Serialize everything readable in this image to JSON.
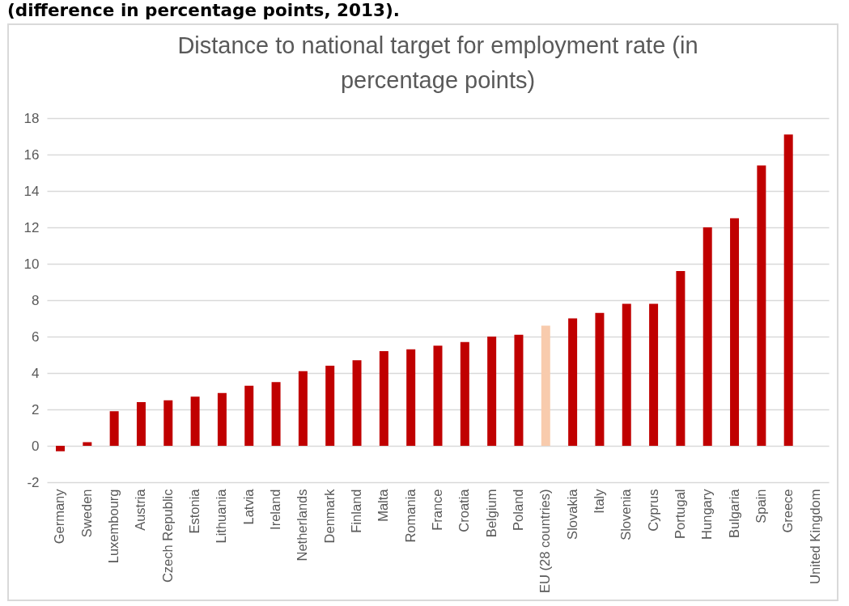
{
  "chart_data": {
    "type": "bar",
    "title": "Distance to national target for employment rate (in percentage points)",
    "annotations": [
      "(difference in percentage points, 2013)."
    ],
    "categories": [
      "Germany",
      "Sweden",
      "Luxembourg",
      "Austria",
      "Czech Republic",
      "Estonia",
      "Lithuania",
      "Latvia",
      "Ireland",
      "Netherlands",
      "Denmark",
      "Finland",
      "Malta",
      "Romania",
      "France",
      "Croatia",
      "Belgium",
      "Poland",
      "EU (28 countries)",
      "Slovakia",
      "Italy",
      "Slovenia",
      "Cyprus",
      "Portugal",
      "Hungary",
      "Bulgaria",
      "Spain",
      "Greece",
      "United Kingdom"
    ],
    "values": [
      -0.3,
      0.2,
      1.9,
      2.4,
      2.5,
      2.7,
      2.9,
      3.3,
      3.5,
      4.1,
      4.4,
      4.7,
      5.2,
      5.3,
      5.5,
      5.7,
      6.0,
      6.1,
      6.6,
      7.0,
      7.3,
      7.8,
      7.8,
      9.6,
      12.0,
      12.5,
      15.4,
      17.1,
      null
    ],
    "colors": [
      "#c00000",
      "#c00000",
      "#c00000",
      "#c00000",
      "#c00000",
      "#c00000",
      "#c00000",
      "#c00000",
      "#c00000",
      "#c00000",
      "#c00000",
      "#c00000",
      "#c00000",
      "#c00000",
      "#c00000",
      "#c00000",
      "#c00000",
      "#c00000",
      "#f8cbad",
      "#c00000",
      "#c00000",
      "#c00000",
      "#c00000",
      "#c00000",
      "#c00000",
      "#c00000",
      "#c00000",
      "#c00000",
      null
    ],
    "ylim": [
      -2,
      18
    ],
    "yticks": [
      -2,
      0,
      2,
      4,
      6,
      8,
      10,
      12,
      14,
      16,
      18
    ],
    "grid": "y"
  }
}
